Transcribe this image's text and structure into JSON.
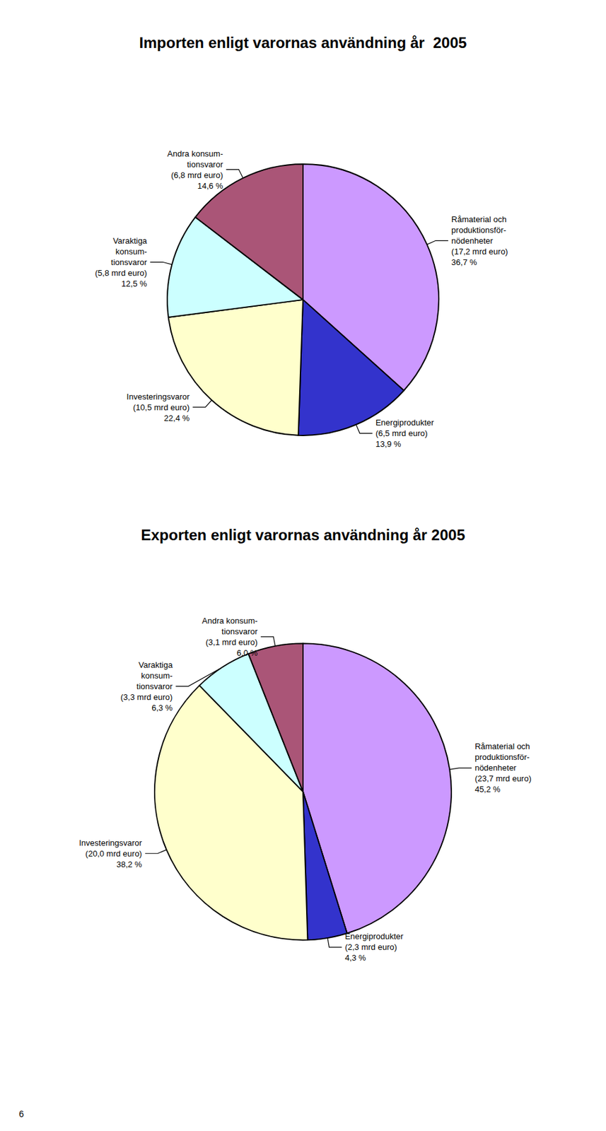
{
  "chart_data": [
    {
      "type": "pie",
      "title": "Importen enligt varornas användning år  2005",
      "categories": [
        "Råmaterial och\nproduktionsför-\nnödenheter\n(17,2 mrd euro)",
        "Energiprodukter\n(6,5 mrd euro)",
        "Investeringsvaror\n(10,5 mrd euro)",
        "Varaktiga\nkonsum-\ntionsvaror\n(5,8 mrd euro)",
        "Andra konsum-\ntionsvaror\n(6,8 mrd euro)"
      ],
      "values": [
        36.7,
        13.9,
        22.4,
        12.5,
        14.6
      ],
      "value_labels": [
        "36,7 %",
        "13,9 %",
        "22,4 %",
        "12,5 %",
        "14,6 %"
      ],
      "colors": [
        "#CC99FF",
        "#3333CC",
        "#FFFFCC",
        "#CCFFFF",
        "#AA5577"
      ],
      "data_labels": true
    },
    {
      "type": "pie",
      "title": "Exporten enligt varornas användning år 2005",
      "categories": [
        "Råmaterial och\nproduktionsför-\nnödenheter\n(23,7 mrd euro)",
        "Energiprodukter\n(2,3 mrd euro)",
        "Investeringsvaror\n(20,0 mrd euro)",
        "Varaktiga\nkonsum-\ntionsvaror\n(3,3 mrd euro)",
        "Andra konsum-\ntionsvaror\n(3,1 mrd euro)"
      ],
      "values": [
        45.2,
        4.3,
        38.2,
        6.3,
        6.0
      ],
      "value_labels": [
        "45,2 %",
        "4,3 %",
        "38,2 %",
        "6,3 %",
        "6,0 %"
      ],
      "colors": [
        "#CC99FF",
        "#3333CC",
        "#FFFFCC",
        "#CCFFFF",
        "#AA5577"
      ],
      "data_labels": true,
      "annotations": [
        "6"
      ]
    }
  ]
}
